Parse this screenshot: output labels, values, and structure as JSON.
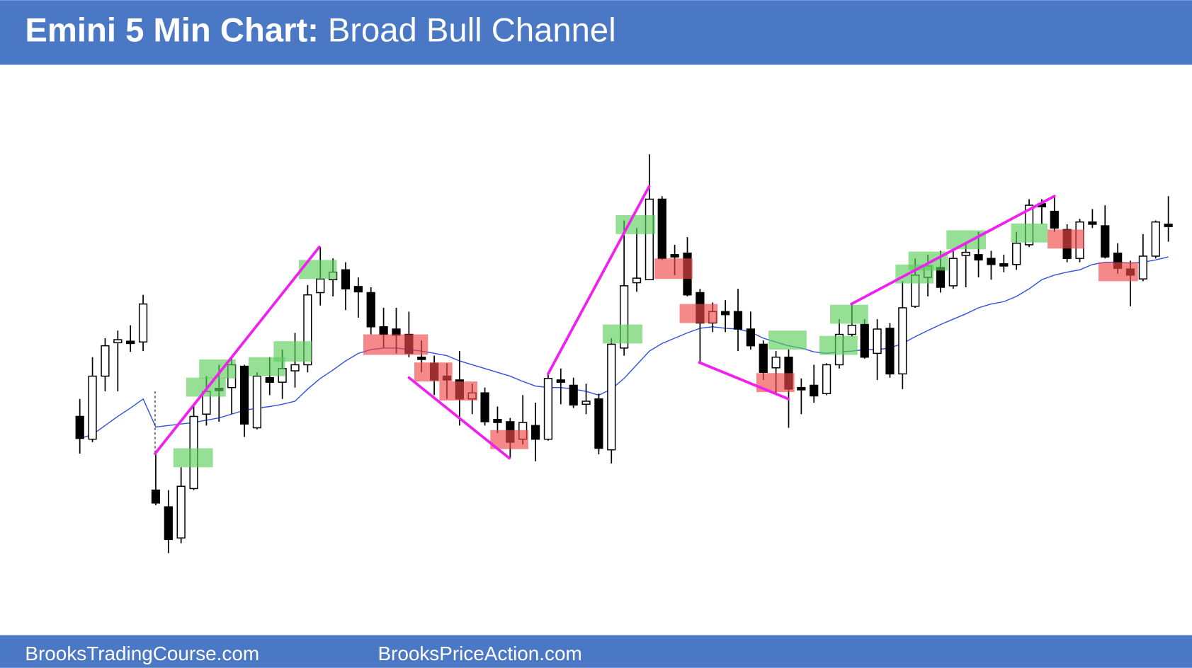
{
  "header": {
    "title_lead": "Emini 5 Min Chart:",
    "title": "Broad Bull Channel"
  },
  "chart_data": {
    "type": "candlestick",
    "ylim": [
      64,
      815
    ],
    "open": [
      352,
      322,
      405,
      449,
      451,
      450,
      255,
      233,
      192,
      257,
      355,
      389,
      390,
      418,
      337,
      403,
      397,
      412,
      420,
      515,
      532,
      545,
      523,
      515,
      470,
      467,
      460,
      430,
      422,
      405,
      400,
      375,
      383,
      348,
      345,
      322,
      340,
      322,
      400,
      393,
      368,
      375,
      308,
      442,
      528,
      532,
      638,
      565,
      567,
      515,
      475,
      490,
      490,
      467,
      447,
      416,
      430,
      390,
      393,
      382,
      420,
      460,
      473,
      435,
      468,
      408,
      497,
      535,
      548,
      524,
      564,
      565,
      560,
      553,
      552,
      578,
      632,
      622,
      598,
      560,
      608,
      603,
      567,
      546,
      533,
      563,
      605
    ],
    "high": [
      375,
      430,
      455,
      465,
      472,
      512,
      303,
      255,
      285,
      365,
      405,
      420,
      430,
      420,
      410,
      430,
      440,
      462,
      525,
      575,
      560,
      555,
      535,
      522,
      495,
      495,
      490,
      452,
      432,
      422,
      438,
      395,
      390,
      365,
      350,
      380,
      370,
      408,
      415,
      403,
      395,
      382,
      455,
      610,
      600,
      697,
      642,
      578,
      588,
      520,
      502,
      505,
      520,
      490,
      452,
      438,
      440,
      402,
      420,
      422,
      480,
      500,
      480,
      480,
      475,
      530,
      560,
      565,
      570,
      570,
      582,
      595,
      570,
      565,
      595,
      638,
      638,
      642,
      605,
      612,
      625,
      630,
      580,
      557,
      592,
      610,
      642
    ],
    "low": [
      303,
      318,
      385,
      385,
      437,
      438,
      235,
      172,
      185,
      255,
      340,
      345,
      355,
      325,
      335,
      380,
      375,
      390,
      410,
      498,
      510,
      492,
      482,
      460,
      442,
      435,
      430,
      410,
      380,
      375,
      340,
      355,
      340,
      330,
      298,
      315,
      293,
      320,
      368,
      363,
      355,
      302,
      290,
      432,
      516,
      532,
      558,
      538,
      510,
      422,
      463,
      463,
      438,
      440,
      400,
      382,
      337,
      355,
      370,
      380,
      415,
      457,
      428,
      400,
      403,
      388,
      495,
      510,
      515,
      520,
      522,
      535,
      532,
      542,
      545,
      575,
      605,
      595,
      555,
      555,
      600,
      560,
      540,
      497,
      530,
      560,
      582
    ],
    "close": [
      323,
      405,
      445,
      453,
      450,
      500,
      238,
      190,
      260,
      352,
      385,
      388,
      420,
      342,
      405,
      397,
      415,
      420,
      512,
      533,
      542,
      520,
      516,
      470,
      460,
      459,
      435,
      427,
      400,
      400,
      375,
      383,
      345,
      344,
      318,
      344,
      322,
      402,
      397,
      367,
      372,
      310,
      447,
      524,
      534,
      638,
      560,
      562,
      512,
      475,
      490,
      486,
      467,
      445,
      410,
      430,
      388,
      388,
      379,
      420,
      460,
      472,
      430,
      467,
      408,
      495,
      538,
      550,
      522,
      560,
      568,
      558,
      552,
      550,
      580,
      630,
      628,
      600,
      560,
      608,
      605,
      562,
      547,
      538,
      563,
      608,
      603
    ],
    "ema": [
      323,
      328,
      340,
      352,
      363,
      375,
      338,
      340,
      342,
      344,
      347,
      350,
      355,
      360,
      363,
      365,
      368,
      372,
      388,
      402,
      413,
      425,
      435,
      440,
      442,
      442,
      440,
      438,
      435,
      432,
      425,
      420,
      415,
      410,
      405,
      398,
      392,
      390,
      390,
      388,
      385,
      380,
      388,
      402,
      420,
      438,
      448,
      455,
      462,
      468,
      470,
      468,
      467,
      463,
      455,
      450,
      445,
      442,
      437,
      435,
      437,
      438,
      440,
      440,
      442,
      448,
      457,
      465,
      473,
      480,
      487,
      495,
      500,
      503,
      510,
      520,
      532,
      538,
      542,
      545,
      552,
      555,
      555,
      554,
      555,
      558,
      562
    ]
  },
  "footer": {
    "left": "BrooksTradingCourse.com",
    "right": "BrooksPriceAction.com"
  }
}
